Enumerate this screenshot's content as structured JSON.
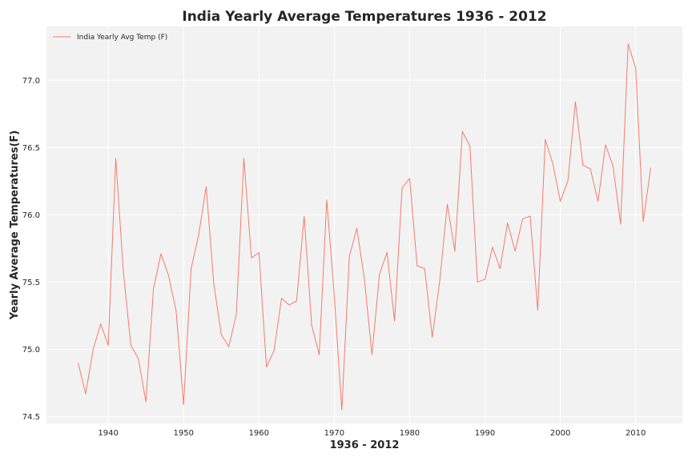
{
  "chart_data": {
    "type": "line",
    "title": "India Yearly Average Temperatures 1936 - 2012",
    "xlabel": "1936 - 2012",
    "ylabel": "Yearly Average Temperatures(F)",
    "xlim": [
      1931.8,
      2016.2
    ],
    "ylim": [
      74.45,
      77.4
    ],
    "x_ticks": [
      1940,
      1950,
      1960,
      1970,
      1980,
      1990,
      2000,
      2010
    ],
    "y_ticks": [
      74.5,
      75.0,
      75.5,
      76.0,
      76.5,
      77.0
    ],
    "y_tick_labels": [
      "74.5",
      "75.0",
      "75.5",
      "76.0",
      "76.5",
      "77.0"
    ],
    "grid": true,
    "legend_position": "top-left",
    "background": "#f2f2f2",
    "grid_color": "#ffffff",
    "series": [
      {
        "name": "India Yearly Avg Temp (F)",
        "color": "#f47c6b",
        "x": [
          1936,
          1937,
          1938,
          1939,
          1940,
          1941,
          1942,
          1943,
          1944,
          1945,
          1946,
          1947,
          1948,
          1949,
          1950,
          1951,
          1952,
          1953,
          1954,
          1955,
          1956,
          1957,
          1958,
          1959,
          1960,
          1961,
          1962,
          1963,
          1964,
          1965,
          1966,
          1967,
          1968,
          1969,
          1970,
          1971,
          1972,
          1973,
          1974,
          1975,
          1976,
          1977,
          1978,
          1979,
          1980,
          1981,
          1982,
          1983,
          1984,
          1985,
          1986,
          1987,
          1988,
          1989,
          1990,
          1991,
          1992,
          1993,
          1994,
          1995,
          1996,
          1997,
          1998,
          1999,
          2000,
          2001,
          2002,
          2003,
          2004,
          2005,
          2006,
          2007,
          2008,
          2009,
          2010,
          2011,
          2012
        ],
        "values": [
          74.9,
          74.67,
          75.0,
          75.19,
          75.03,
          76.42,
          75.58,
          75.03,
          74.93,
          74.61,
          75.45,
          75.71,
          75.55,
          75.29,
          74.59,
          75.6,
          75.85,
          76.21,
          75.49,
          75.11,
          75.02,
          75.26,
          76.42,
          75.68,
          75.72,
          74.87,
          74.99,
          75.38,
          75.33,
          75.36,
          75.99,
          75.18,
          74.96,
          76.11,
          75.4,
          74.55,
          75.69,
          75.9,
          75.52,
          74.96,
          75.56,
          75.72,
          75.21,
          76.2,
          76.27,
          75.62,
          75.6,
          75.09,
          75.51,
          76.08,
          75.73,
          76.62,
          76.51,
          75.5,
          75.52,
          75.76,
          75.6,
          75.94,
          75.73,
          75.97,
          75.99,
          75.29,
          76.56,
          76.38,
          76.1,
          76.25,
          76.84,
          76.37,
          76.34,
          76.1,
          76.52,
          76.36,
          75.93,
          77.27,
          77.09,
          75.95,
          76.35
        ]
      }
    ]
  }
}
